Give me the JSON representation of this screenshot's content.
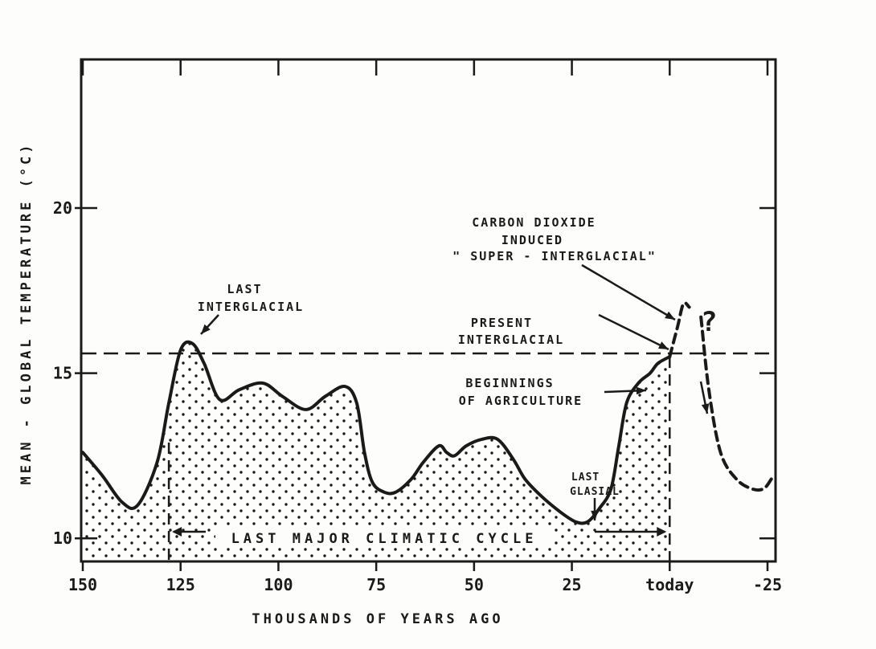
{
  "chart_data": {
    "type": "line",
    "xlabel": "THOUSANDS OF YEARS AGO",
    "ylabel": "MEAN - GLOBAL TEMPERATURE (°C)",
    "x_tick_labels": [
      {
        "x": 150,
        "label": "150"
      },
      {
        "x": 125,
        "label": "125"
      },
      {
        "x": 100,
        "label": "100"
      },
      {
        "x": 75,
        "label": "75"
      },
      {
        "x": 50,
        "label": "50"
      },
      {
        "x": 25,
        "label": "25"
      },
      {
        "x": 0,
        "label": "today"
      },
      {
        "x": -25,
        "label": "-25"
      }
    ],
    "y_tick_labels": [
      {
        "y": 10,
        "label": "10"
      },
      {
        "y": 15,
        "label": "15"
      },
      {
        "y": 20,
        "label": "20"
      }
    ],
    "xlim": [
      150,
      -25
    ],
    "ylim": [
      9.3,
      24.5
    ],
    "series": [
      {
        "style": "solid",
        "x": [
          150,
          145,
          140,
          136,
          131,
          128,
          125,
          122,
          119,
          115,
          110,
          104,
          99,
          93,
          88,
          83,
          80,
          78,
          76,
          73,
          70,
          66,
          63,
          59,
          57,
          55,
          52,
          48,
          44,
          40,
          37,
          33,
          28,
          24,
          21,
          18,
          15,
          13,
          11,
          8,
          5,
          3,
          0
        ],
        "y": [
          12.6,
          11.9,
          11.1,
          11.0,
          12.3,
          14.1,
          15.7,
          15.9,
          15.3,
          14.2,
          14.5,
          14.7,
          14.3,
          13.9,
          14.3,
          14.6,
          14.1,
          12.6,
          11.7,
          11.4,
          11.4,
          11.8,
          12.3,
          12.8,
          12.6,
          12.5,
          12.8,
          13.0,
          13.0,
          12.4,
          11.8,
          11.3,
          10.8,
          10.5,
          10.5,
          10.9,
          11.5,
          12.8,
          14.1,
          14.7,
          15.0,
          15.3,
          15.5
        ]
      },
      {
        "style": "dashed",
        "x": [
          0,
          -2,
          -3.5,
          -5
        ],
        "y": [
          15.5,
          16.4,
          17.1,
          17.0
        ]
      },
      {
        "style": "dashed",
        "x": [
          -8,
          -10,
          -13,
          -17,
          -21,
          -24,
          -26
        ],
        "y": [
          16.7,
          14.5,
          12.6,
          11.8,
          11.5,
          11.5,
          11.8
        ]
      }
    ],
    "reference_line": {
      "y": 15.6,
      "style": "dashed"
    },
    "annotations": [
      {
        "lines": [
          "LAST",
          "INTERGLACIAL"
        ]
      },
      {
        "lines": [
          "PRESENT",
          "INTERGLACIAL"
        ]
      },
      {
        "lines": [
          "CARBON DIOXIDE",
          "INDUCED",
          "\" SUPER - INTERGLACIAL\""
        ]
      },
      {
        "lines": [
          "BEGINNINGS",
          "OF AGRICULTURE"
        ]
      },
      {
        "lines": [
          "LAST",
          "GLASIAL"
        ]
      },
      {
        "lines": [
          "LAST MAJOR CLIMATIC CYCLE"
        ]
      },
      {
        "lines": [
          "?"
        ]
      }
    ],
    "cycle_span": [
      128,
      0
    ],
    "grid": false,
    "colors": {
      "ink": "#1a1a1a",
      "paper": "#fdfdfb"
    }
  }
}
